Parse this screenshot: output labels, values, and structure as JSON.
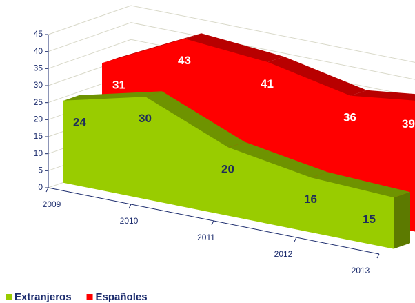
{
  "chart_data": {
    "type": "area3d",
    "categories": [
      "2009",
      "2010",
      "2011",
      "2012",
      "2013"
    ],
    "series": [
      {
        "name": "Extranjeros",
        "color": "#99cc00",
        "values": [
          24,
          30,
          20,
          16,
          15
        ]
      },
      {
        "name": "Españoles",
        "color": "#ff0000",
        "values": [
          31,
          43,
          41,
          36,
          39
        ]
      }
    ],
    "ylim": [
      0,
      45
    ],
    "yticks": [
      0,
      5,
      10,
      15,
      20,
      25,
      30,
      35,
      40,
      45
    ],
    "grid": true,
    "legend": "bottom"
  }
}
